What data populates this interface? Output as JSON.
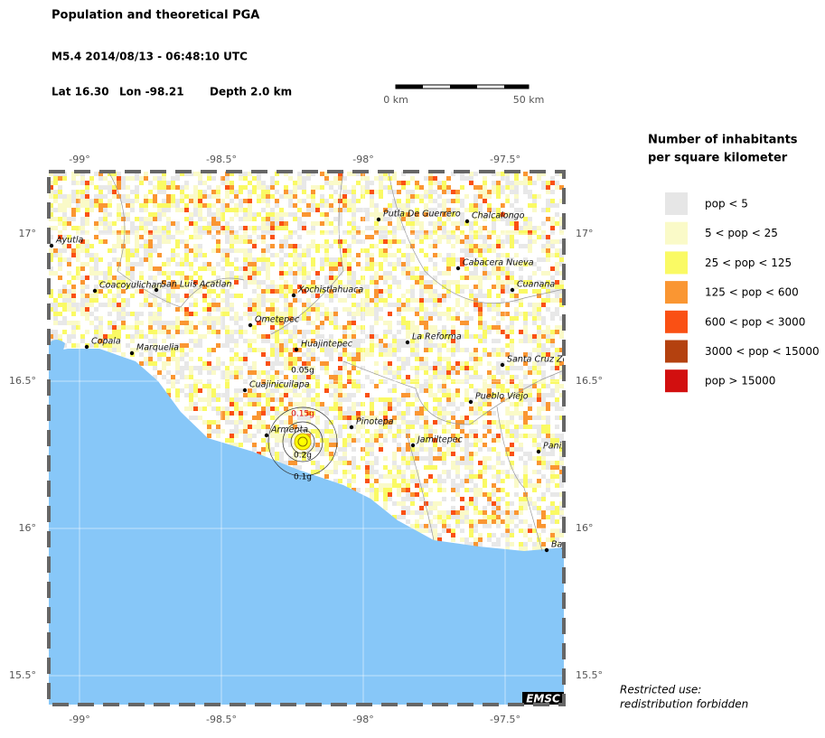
{
  "header": {
    "title": "Population and theoretical PGA",
    "event": "M5.4  2014/08/13 - 06:48:10 UTC",
    "lat": "Lat 16.30",
    "lon": "Lon -98.21",
    "depth": "Depth  2.0 km"
  },
  "scale_bar": {
    "start": "0 km",
    "end": "50 km"
  },
  "axes": {
    "lon_ticks": [
      {
        "value": -99,
        "label": "-99°"
      },
      {
        "value": -98.5,
        "label": "-98.5°"
      },
      {
        "value": -98,
        "label": "-98°"
      },
      {
        "value": -97.5,
        "label": "-97.5°"
      }
    ],
    "lat_ticks": [
      {
        "value": 17,
        "label": "17°"
      },
      {
        "value": 16.5,
        "label": "16.5°"
      },
      {
        "value": 16,
        "label": "16°"
      },
      {
        "value": 15.5,
        "label": "15.5°"
      }
    ]
  },
  "cities": [
    "Ayutla",
    "Coacoyulichan",
    "San Luis Acatlan",
    "Ometepec",
    "Xochistlahuaca",
    "Putla De Guerrero",
    "Chalcalongo",
    "Cabacera Nueva",
    "Cuanana",
    "Copala",
    "Marquelia",
    "Huajintepec",
    "La Reforma",
    "Santa Cruz Ze",
    "Cuajinicuilapa",
    "Pueblo Viejo",
    "Armenta",
    "Pinotepa",
    "Jamiltepec",
    "Panix",
    "Baj"
  ],
  "pga_labels": [
    "0.05g",
    "0.15g",
    "0.2g",
    "0.1g"
  ],
  "legend": {
    "title": [
      "Number of inhabitants",
      "per square kilometer"
    ],
    "items": [
      {
        "label": "pop < 5",
        "color": "#e6e6e6"
      },
      {
        "label": "5 < pop < 25",
        "color": "#fafac8"
      },
      {
        "label": "25 < pop < 125",
        "color": "#fafa64"
      },
      {
        "label": "125 < pop < 600",
        "color": "#fa9632"
      },
      {
        "label": "600 < pop < 3000",
        "color": "#fa5014"
      },
      {
        "label": "3000 < pop < 15000",
        "color": "#b4410f"
      },
      {
        "label": "pop > 15000",
        "color": "#d20f0f"
      }
    ]
  },
  "badge": "EMSC",
  "footer": [
    "Restricted use:",
    "redistribution forbidden"
  ]
}
